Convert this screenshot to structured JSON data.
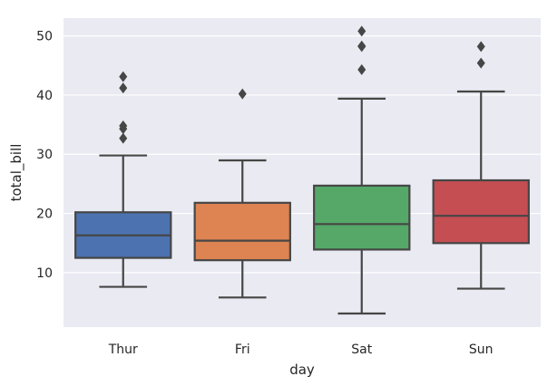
{
  "chart_data": {
    "type": "box",
    "title": "",
    "xlabel": "day",
    "ylabel": "total_bill",
    "ylim": [
      0.8,
      53
    ],
    "yticks": [
      10,
      20,
      30,
      40,
      50
    ],
    "grid": true,
    "background": "#eaeaf2",
    "grid_color": "#ffffff",
    "line_color": "#464646",
    "categories": [
      "Thur",
      "Fri",
      "Sat",
      "Sun"
    ],
    "boxes": [
      {
        "category": "Thur",
        "color": "#4c72b0",
        "q1": 12.5,
        "median": 16.3,
        "q3": 20.2,
        "whisker_low": 7.6,
        "whisker_high": 29.8,
        "outliers": [
          32.7,
          34.3,
          34.8,
          41.2,
          43.1
        ]
      },
      {
        "category": "Fri",
        "color": "#dd8452",
        "q1": 12.1,
        "median": 15.4,
        "q3": 21.8,
        "whisker_low": 5.8,
        "whisker_high": 28.97,
        "outliers": [
          40.2
        ]
      },
      {
        "category": "Sat",
        "color": "#55a868",
        "q1": 13.9,
        "median": 18.2,
        "q3": 24.7,
        "whisker_low": 3.1,
        "whisker_high": 39.4,
        "outliers": [
          44.3,
          48.2,
          48.3,
          50.8
        ]
      },
      {
        "category": "Sun",
        "color": "#c44e52",
        "q1": 14.99,
        "median": 19.6,
        "q3": 25.6,
        "whisker_low": 7.3,
        "whisker_high": 40.6,
        "outliers": [
          45.4,
          48.2
        ]
      }
    ]
  }
}
